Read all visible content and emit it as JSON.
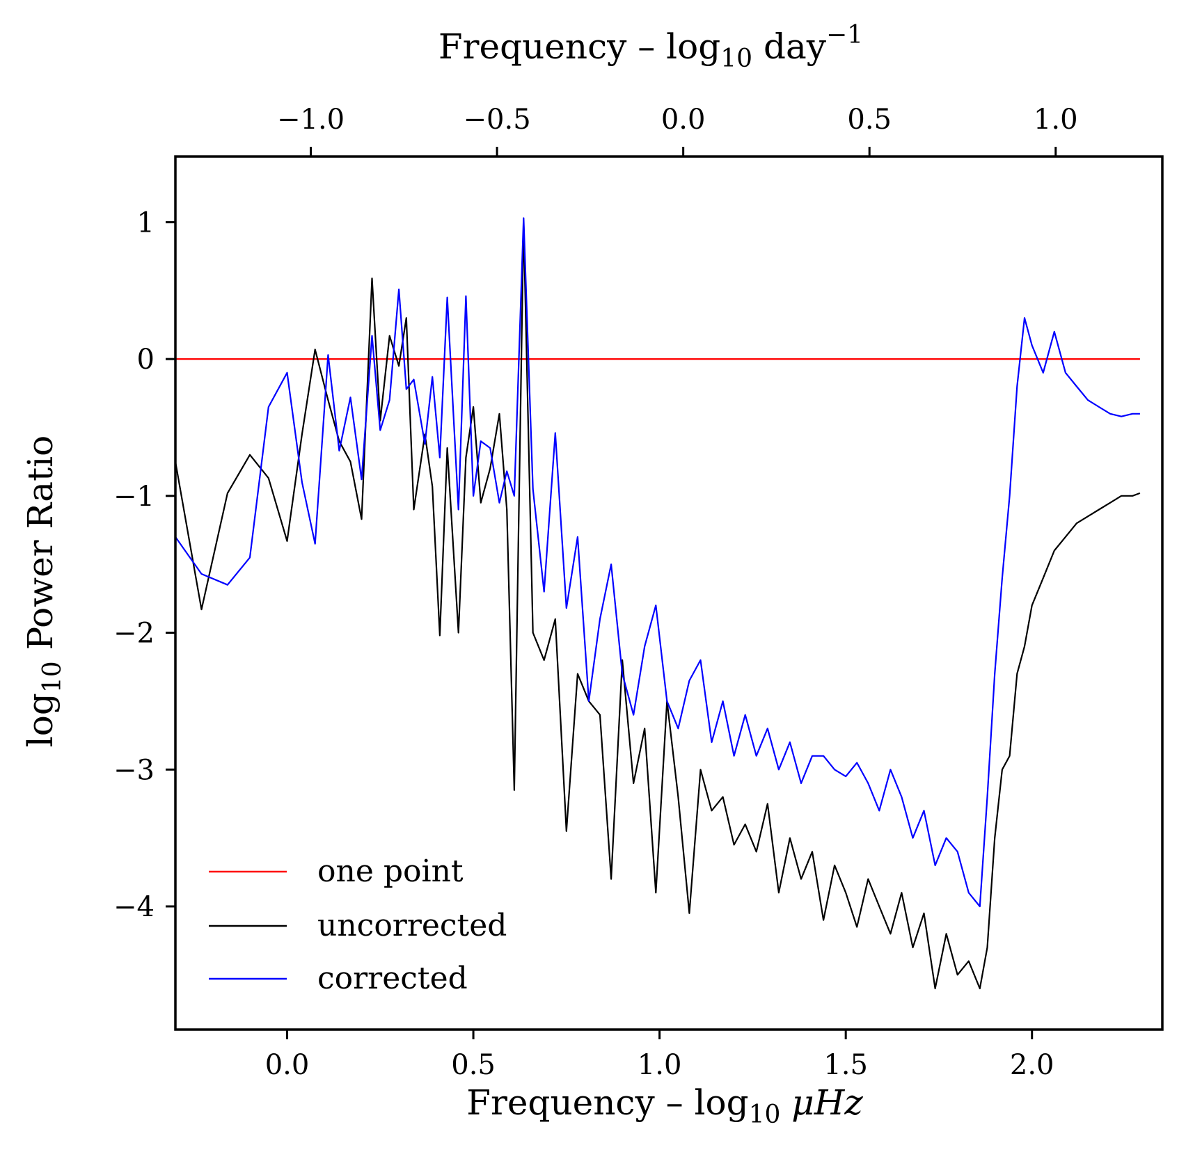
{
  "chart_data": {
    "type": "line",
    "x_bottom": {
      "label": "Frequency – log10 μHz",
      "label_parts": {
        "prefix": "Frequency – log",
        "sub": "10",
        "unit": "μHz"
      },
      "range": [
        -0.3,
        2.35
      ],
      "ticks": [
        0.0,
        0.5,
        1.0,
        1.5,
        2.0
      ],
      "tick_labels": [
        "0.0",
        "0.5",
        "1.0",
        "1.5",
        "2.0"
      ]
    },
    "x_top": {
      "label": "Frequency – log10 day−1",
      "label_parts": {
        "prefix": "Frequency – log",
        "sub": "10",
        "unit": "day",
        "sup": "−1"
      },
      "offset_from_bottom": -1.0636,
      "ticks": [
        -1.0,
        -0.5,
        0.0,
        0.5,
        1.0
      ],
      "tick_labels": [
        "−1.0",
        "−0.5",
        "0.0",
        "0.5",
        "1.0"
      ]
    },
    "y": {
      "label": "log10 Power Ratio",
      "label_parts": {
        "prefix": "log",
        "sub": "10",
        "suffix": " Power Ratio"
      },
      "range": [
        -4.9,
        1.48
      ],
      "ticks": [
        1,
        0,
        -1,
        -2,
        -3,
        -4
      ],
      "tick_labels": [
        "1",
        "0",
        "−1",
        "−2",
        "−3",
        "−4"
      ]
    },
    "legend": {
      "position": "lower-left",
      "entries": [
        {
          "name": "one point",
          "color": "#ff0000"
        },
        {
          "name": "uncorrected",
          "color": "#000000"
        },
        {
          "name": "corrected",
          "color": "#0000ff"
        }
      ]
    },
    "series": [
      {
        "name": "one point",
        "color": "#ff0000",
        "x": [
          -0.3,
          2.29
        ],
        "y": [
          0.0,
          0.0
        ]
      },
      {
        "name": "uncorrected",
        "color": "#000000",
        "x": [
          -0.3,
          -0.23,
          -0.16,
          -0.1,
          -0.05,
          0.0,
          0.04,
          0.075,
          0.11,
          0.14,
          0.17,
          0.2,
          0.228,
          0.25,
          0.275,
          0.3,
          0.32,
          0.34,
          0.37,
          0.39,
          0.41,
          0.43,
          0.46,
          0.48,
          0.5,
          0.52,
          0.545,
          0.57,
          0.59,
          0.61,
          0.635,
          0.66,
          0.69,
          0.72,
          0.75,
          0.78,
          0.81,
          0.84,
          0.87,
          0.9,
          0.93,
          0.96,
          0.99,
          1.02,
          1.05,
          1.08,
          1.11,
          1.14,
          1.17,
          1.2,
          1.23,
          1.26,
          1.29,
          1.32,
          1.35,
          1.38,
          1.41,
          1.44,
          1.47,
          1.5,
          1.53,
          1.56,
          1.59,
          1.62,
          1.65,
          1.68,
          1.71,
          1.74,
          1.77,
          1.8,
          1.83,
          1.86,
          1.88,
          1.9,
          1.92,
          1.94,
          1.96,
          1.98,
          2.0,
          2.03,
          2.06,
          2.09,
          2.12,
          2.15,
          2.18,
          2.21,
          2.24,
          2.27,
          2.29
        ],
        "y": [
          -0.75,
          -1.83,
          -0.98,
          -0.7,
          -0.87,
          -1.33,
          -0.55,
          0.07,
          -0.3,
          -0.6,
          -0.75,
          -1.17,
          0.59,
          -0.45,
          0.17,
          -0.05,
          0.3,
          -1.1,
          -0.55,
          -0.93,
          -2.02,
          -0.65,
          -2.0,
          -0.72,
          -0.35,
          -1.05,
          -0.8,
          -0.4,
          -1.1,
          -3.15,
          1.0,
          -2.0,
          -2.2,
          -1.9,
          -3.45,
          -2.3,
          -2.5,
          -2.6,
          -3.8,
          -2.2,
          -3.1,
          -2.7,
          -3.9,
          -2.5,
          -3.2,
          -4.05,
          -3.0,
          -3.3,
          -3.2,
          -3.55,
          -3.4,
          -3.6,
          -3.25,
          -3.9,
          -3.5,
          -3.8,
          -3.6,
          -4.1,
          -3.7,
          -3.9,
          -4.15,
          -3.8,
          -4.0,
          -4.2,
          -3.9,
          -4.3,
          -4.05,
          -4.6,
          -4.2,
          -4.5,
          -4.4,
          -4.6,
          -4.3,
          -3.5,
          -3.0,
          -2.9,
          -2.3,
          -2.1,
          -1.8,
          -1.6,
          -1.4,
          -1.3,
          -1.2,
          -1.15,
          -1.1,
          -1.05,
          -1.0,
          -1.0,
          -0.98
        ]
      },
      {
        "name": "corrected",
        "color": "#0000ff",
        "x": [
          -0.3,
          -0.23,
          -0.16,
          -0.1,
          -0.05,
          0.0,
          0.04,
          0.075,
          0.11,
          0.14,
          0.17,
          0.2,
          0.228,
          0.25,
          0.275,
          0.3,
          0.32,
          0.34,
          0.37,
          0.39,
          0.41,
          0.43,
          0.46,
          0.48,
          0.5,
          0.52,
          0.545,
          0.57,
          0.59,
          0.61,
          0.635,
          0.66,
          0.69,
          0.72,
          0.75,
          0.78,
          0.81,
          0.84,
          0.87,
          0.9,
          0.93,
          0.96,
          0.99,
          1.02,
          1.05,
          1.08,
          1.11,
          1.14,
          1.17,
          1.2,
          1.23,
          1.26,
          1.29,
          1.32,
          1.35,
          1.38,
          1.41,
          1.44,
          1.47,
          1.5,
          1.53,
          1.56,
          1.59,
          1.62,
          1.65,
          1.68,
          1.71,
          1.74,
          1.77,
          1.8,
          1.83,
          1.86,
          1.88,
          1.9,
          1.92,
          1.94,
          1.96,
          1.98,
          2.0,
          2.03,
          2.06,
          2.09,
          2.12,
          2.15,
          2.18,
          2.21,
          2.24,
          2.27,
          2.29
        ],
        "y": [
          -1.3,
          -1.57,
          -1.65,
          -1.45,
          -0.35,
          -0.1,
          -0.9,
          -1.35,
          0.03,
          -0.67,
          -0.28,
          -0.88,
          0.17,
          -0.52,
          -0.3,
          0.51,
          -0.22,
          -0.15,
          -0.62,
          -0.13,
          -0.72,
          0.45,
          -1.1,
          0.46,
          -1.0,
          -0.6,
          -0.65,
          -1.05,
          -0.82,
          -1.0,
          1.03,
          -0.95,
          -1.7,
          -0.54,
          -1.82,
          -1.3,
          -2.5,
          -1.9,
          -1.5,
          -2.3,
          -2.6,
          -2.1,
          -1.8,
          -2.5,
          -2.7,
          -2.35,
          -2.2,
          -2.8,
          -2.5,
          -2.9,
          -2.6,
          -2.9,
          -2.7,
          -3.0,
          -2.8,
          -3.1,
          -2.9,
          -2.9,
          -3.0,
          -3.05,
          -2.95,
          -3.1,
          -3.3,
          -3.0,
          -3.2,
          -3.5,
          -3.3,
          -3.7,
          -3.5,
          -3.6,
          -3.9,
          -4.0,
          -3.2,
          -2.3,
          -1.6,
          -1.0,
          -0.2,
          0.3,
          0.1,
          -0.1,
          0.2,
          -0.1,
          -0.2,
          -0.3,
          -0.35,
          -0.4,
          -0.42,
          -0.4,
          -0.4
        ]
      }
    ]
  }
}
